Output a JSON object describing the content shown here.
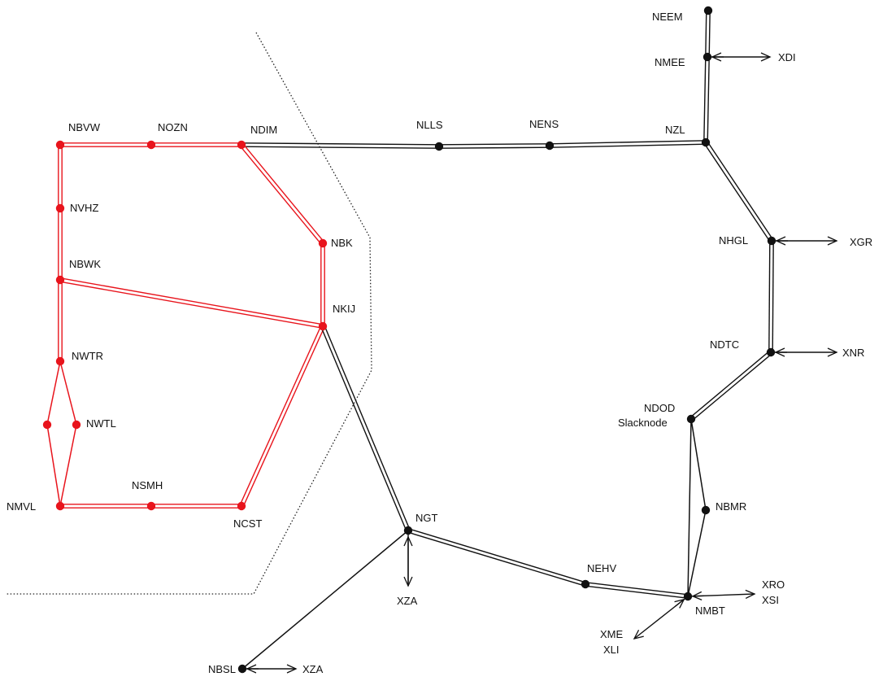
{
  "colors": {
    "highlight": "#e8141c",
    "normal": "#111111",
    "background": "#ffffff",
    "boundary": "#222222"
  },
  "nodes": [
    {
      "id": "NEEM",
      "label": "NEEM",
      "region": "normal"
    },
    {
      "id": "NMEE",
      "label": "NMEE",
      "region": "normal"
    },
    {
      "id": "NZL",
      "label": "NZL",
      "region": "normal"
    },
    {
      "id": "NLLS",
      "label": "NLLS",
      "region": "normal"
    },
    {
      "id": "NENS",
      "label": "NENS",
      "region": "normal"
    },
    {
      "id": "NDIM",
      "label": "NDIM",
      "region": "highlight"
    },
    {
      "id": "NOZN",
      "label": "NOZN",
      "region": "highlight"
    },
    {
      "id": "NBVW",
      "label": "NBVW",
      "region": "highlight"
    },
    {
      "id": "NVHZ",
      "label": "NVHZ",
      "region": "highlight"
    },
    {
      "id": "NBWK",
      "label": "NBWK",
      "region": "highlight"
    },
    {
      "id": "NWTR",
      "label": "NWTR",
      "region": "highlight"
    },
    {
      "id": "NWTL",
      "label": "NWTL",
      "region": "highlight"
    },
    {
      "id": "NWTX",
      "label": "",
      "region": "highlight"
    },
    {
      "id": "NMVL",
      "label": "NMVL",
      "region": "highlight"
    },
    {
      "id": "NSMH",
      "label": "NSMH",
      "region": "highlight"
    },
    {
      "id": "NCST",
      "label": "NCST",
      "region": "highlight"
    },
    {
      "id": "NBK",
      "label": "NBK",
      "region": "highlight"
    },
    {
      "id": "NKIJ",
      "label": "NKIJ",
      "region": "highlight"
    },
    {
      "id": "NHGL",
      "label": "NHGL",
      "region": "normal"
    },
    {
      "id": "NDTC",
      "label": "NDTC",
      "region": "normal"
    },
    {
      "id": "NDOD",
      "label": "NDOD",
      "sublabel": "Slacknode",
      "region": "normal"
    },
    {
      "id": "NBMR",
      "label": "NBMR",
      "region": "normal"
    },
    {
      "id": "NMBT",
      "label": "NMBT",
      "region": "normal"
    },
    {
      "id": "NEHV",
      "label": "NEHV",
      "region": "normal"
    },
    {
      "id": "NGT",
      "label": "NGT",
      "region": "normal"
    },
    {
      "id": "NBSL",
      "label": "NBSL",
      "region": "normal"
    }
  ],
  "lines": [
    {
      "from": "NEEM",
      "to": "NMEE",
      "type": "double",
      "region": "normal"
    },
    {
      "from": "NMEE",
      "to": "NZL",
      "type": "double",
      "region": "normal"
    },
    {
      "from": "NZL",
      "to": "NENS",
      "type": "double",
      "region": "normal"
    },
    {
      "from": "NENS",
      "to": "NLLS",
      "type": "double",
      "region": "normal"
    },
    {
      "from": "NLLS",
      "to": "NDIM",
      "type": "double",
      "region": "normal"
    },
    {
      "from": "NDIM",
      "to": "NOZN",
      "type": "double",
      "region": "highlight"
    },
    {
      "from": "NOZN",
      "to": "NBVW",
      "type": "double",
      "region": "highlight"
    },
    {
      "from": "NBVW",
      "to": "NVHZ",
      "type": "double",
      "region": "highlight"
    },
    {
      "from": "NVHZ",
      "to": "NBWK",
      "type": "double",
      "region": "highlight"
    },
    {
      "from": "NBWK",
      "to": "NWTR",
      "type": "double",
      "region": "highlight"
    },
    {
      "from": "NWTR",
      "to": "NWTX",
      "type": "single",
      "region": "highlight"
    },
    {
      "from": "NWTR",
      "to": "NWTL",
      "type": "single",
      "region": "highlight"
    },
    {
      "from": "NWTX",
      "to": "NMVL",
      "type": "single",
      "region": "highlight"
    },
    {
      "from": "NWTL",
      "to": "NMVL",
      "type": "single",
      "region": "highlight"
    },
    {
      "from": "NMVL",
      "to": "NSMH",
      "type": "double",
      "region": "highlight"
    },
    {
      "from": "NSMH",
      "to": "NCST",
      "type": "double",
      "region": "highlight"
    },
    {
      "from": "NCST",
      "to": "NKIJ",
      "type": "double",
      "region": "highlight"
    },
    {
      "from": "NBWK",
      "to": "NKIJ",
      "type": "double",
      "region": "highlight"
    },
    {
      "from": "NDIM",
      "to": "NBK",
      "type": "double",
      "region": "highlight"
    },
    {
      "from": "NBK",
      "to": "NKIJ",
      "type": "double",
      "region": "highlight"
    },
    {
      "from": "NKIJ",
      "to": "NGT",
      "type": "double",
      "region": "normal"
    },
    {
      "from": "NZL",
      "to": "NHGL",
      "type": "double",
      "region": "normal"
    },
    {
      "from": "NHGL",
      "to": "NDTC",
      "type": "double",
      "region": "normal"
    },
    {
      "from": "NDTC",
      "to": "NDOD",
      "type": "double",
      "region": "normal"
    },
    {
      "from": "NDOD",
      "to": "NBMR",
      "type": "single",
      "region": "normal"
    },
    {
      "from": "NBMR",
      "to": "NMBT",
      "type": "single",
      "region": "normal"
    },
    {
      "from": "NDOD",
      "to": "NMBT",
      "type": "single",
      "region": "normal"
    },
    {
      "from": "NGT",
      "to": "NEHV",
      "type": "double",
      "region": "normal"
    },
    {
      "from": "NEHV",
      "to": "NMBT",
      "type": "double",
      "region": "normal"
    },
    {
      "from": "NGT",
      "to": "NBSL",
      "type": "single",
      "region": "normal"
    }
  ],
  "external_connections": [
    {
      "node": "NMEE",
      "label": "XDI"
    },
    {
      "node": "NHGL",
      "label": "XGR"
    },
    {
      "node": "NDTC",
      "label": "XNR"
    },
    {
      "node": "NMBT",
      "label": "XRO",
      "label2": "XSI"
    },
    {
      "node": "NMBT",
      "label": "XME",
      "label2": "XLI"
    },
    {
      "node": "NGT",
      "label": "XZA"
    },
    {
      "node": "NBSL",
      "label": "XZA"
    }
  ]
}
